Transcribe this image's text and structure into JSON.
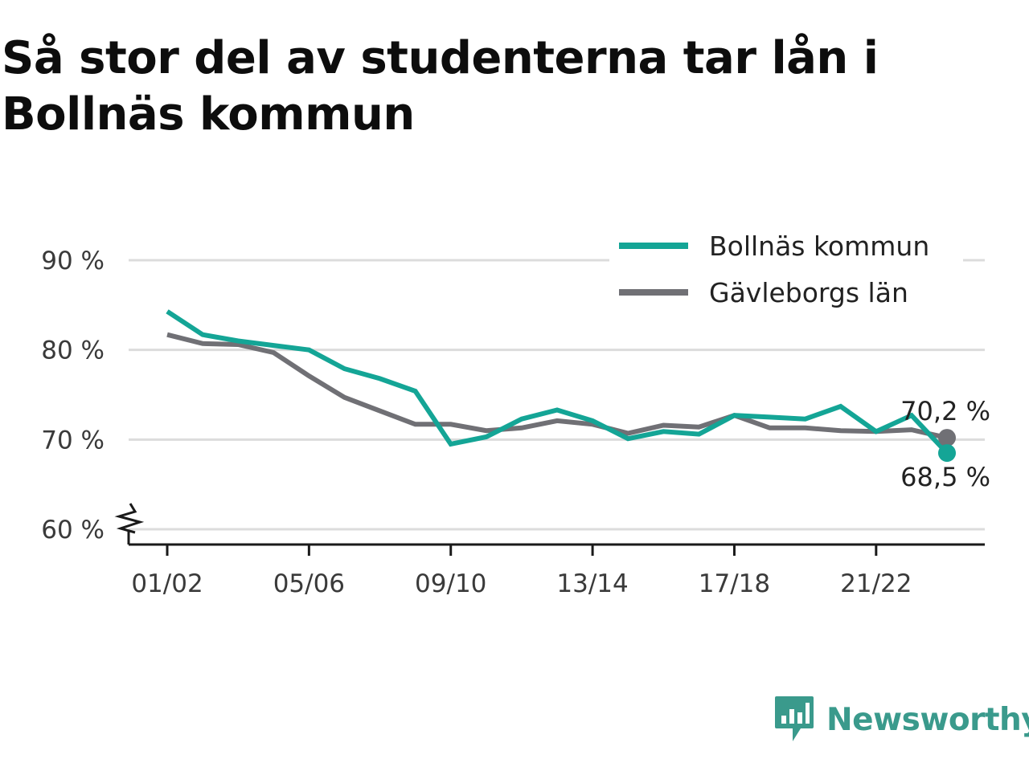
{
  "chart_data": {
    "type": "line",
    "title": "Så stor del av studenterna tar lån i Bollnäs kommun",
    "x": [
      "01/02",
      "02/03",
      "03/04",
      "04/05",
      "05/06",
      "06/07",
      "07/08",
      "08/09",
      "09/10",
      "10/11",
      "11/12",
      "12/13",
      "13/14",
      "14/15",
      "15/16",
      "16/17",
      "17/18",
      "18/19",
      "19/20",
      "20/21",
      "21/22",
      "22/23",
      "23/24"
    ],
    "x_tick_labels": [
      "01/02",
      "05/06",
      "09/10",
      "13/14",
      "17/18",
      "21/22"
    ],
    "y_tick_labels": [
      "60 %",
      "70 %",
      "80 %",
      "90 %"
    ],
    "y_ticks": [
      60,
      70,
      80,
      90
    ],
    "ylim": [
      58.5,
      91
    ],
    "y_axis_break": true,
    "grid": true,
    "legend_position": "top-right",
    "series": [
      {
        "name": "Bollnäs kommun",
        "color": "#14a596",
        "values": [
          84.3,
          81.7,
          81.0,
          80.5,
          80.0,
          77.9,
          76.8,
          75.4,
          69.5,
          70.3,
          72.3,
          73.3,
          72.1,
          70.1,
          70.9,
          70.6,
          72.7,
          72.5,
          72.3,
          73.7,
          70.9,
          72.7,
          68.5
        ],
        "end_label": "68,5 %"
      },
      {
        "name": "Gävleborgs län",
        "color": "#707075",
        "values": [
          81.7,
          80.7,
          80.6,
          79.7,
          77.1,
          74.7,
          73.2,
          71.7,
          71.7,
          71.0,
          71.3,
          72.1,
          71.7,
          70.7,
          71.6,
          71.4,
          72.7,
          71.3,
          71.3,
          71.0,
          70.9,
          71.1,
          70.2
        ],
        "end_label": "70,2 %"
      }
    ]
  },
  "brand": {
    "name": "Newsworthy",
    "color": "#3a9a8c",
    "icon": "newsworthy-logo-icon"
  }
}
